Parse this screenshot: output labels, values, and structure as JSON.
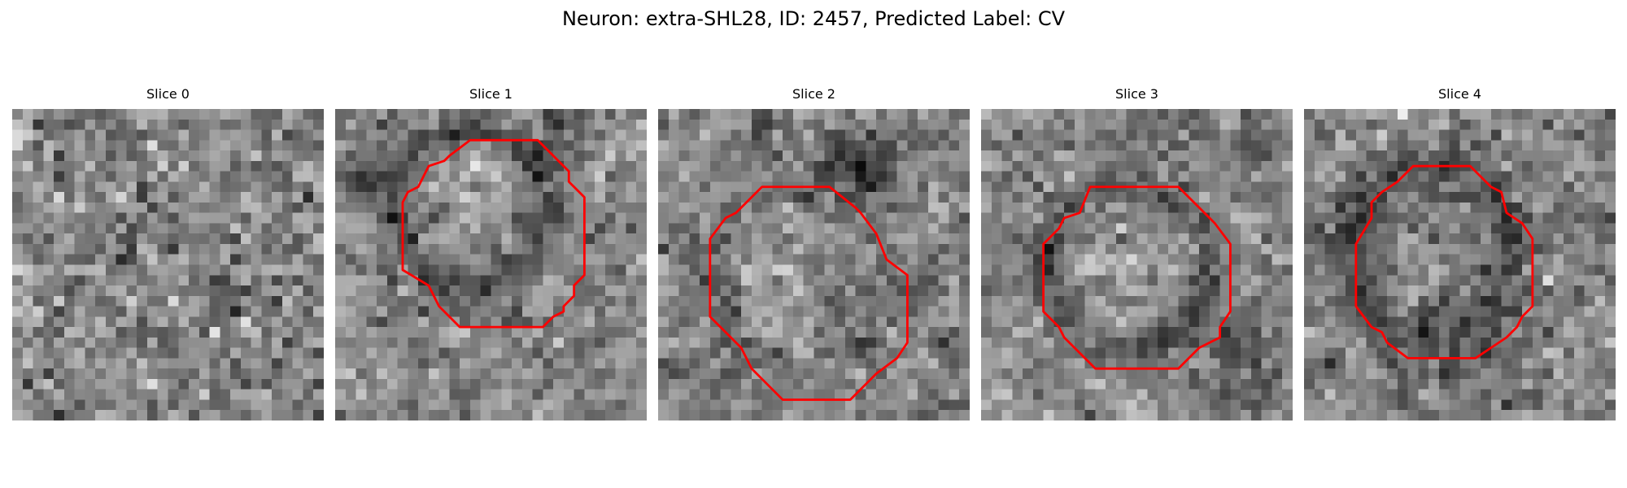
{
  "figure": {
    "title": "Neuron: extra-SHL28, ID: 2457, Predicted Label: CV"
  },
  "colors": {
    "contour": "#ff0000",
    "background": "#ffffff"
  },
  "slices": [
    {
      "title": "Slice 0",
      "has_contour": false,
      "seed": 11
    },
    {
      "title": "Slice 1",
      "has_contour": true,
      "seed": 23
    },
    {
      "title": "Slice 2",
      "has_contour": true,
      "seed": 37
    },
    {
      "title": "Slice 3",
      "has_contour": true,
      "seed": 41
    },
    {
      "title": "Slice 4",
      "has_contour": true,
      "seed": 59
    }
  ]
}
